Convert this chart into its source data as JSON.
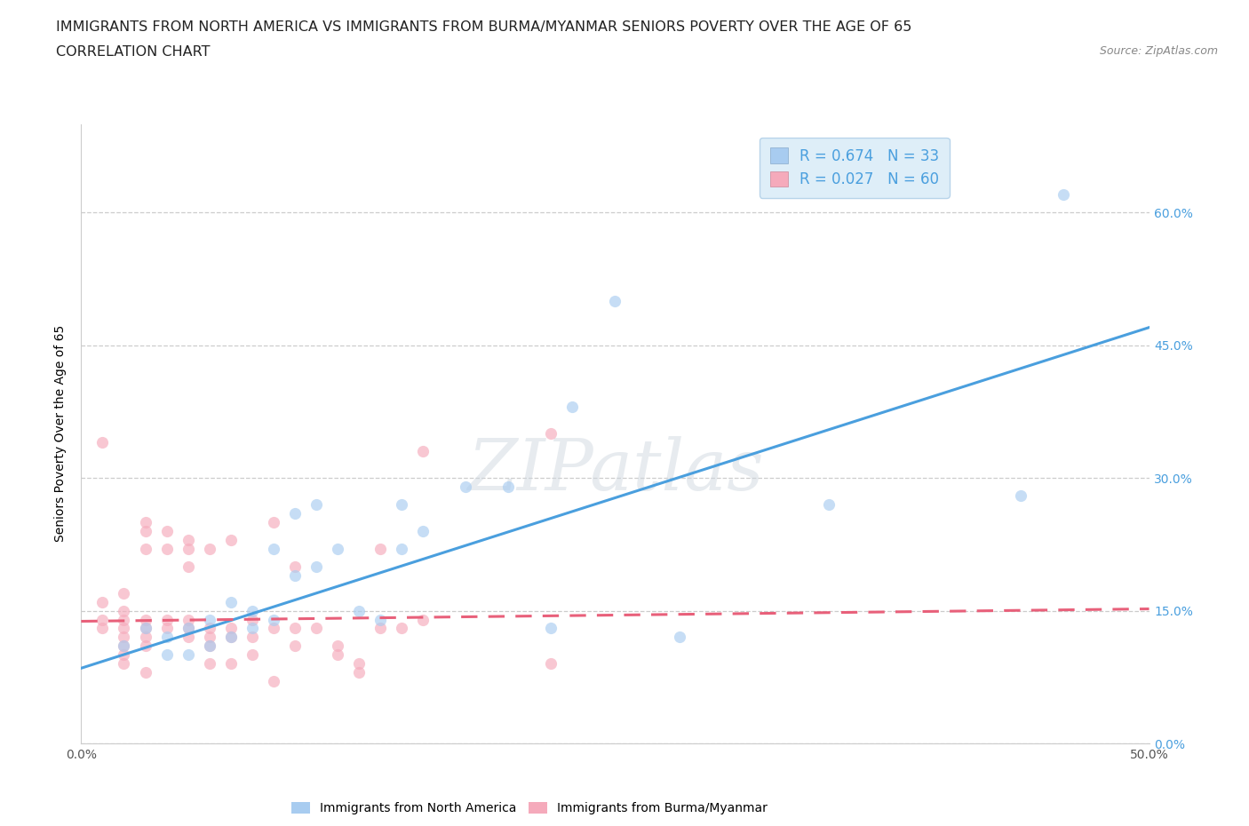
{
  "title_line1": "IMMIGRANTS FROM NORTH AMERICA VS IMMIGRANTS FROM BURMA/MYANMAR SENIORS POVERTY OVER THE AGE OF 65",
  "title_line2": "CORRELATION CHART",
  "source_text": "Source: ZipAtlas.com",
  "ylabel": "Seniors Poverty Over the Age of 65",
  "xlim": [
    0.0,
    0.5
  ],
  "ylim": [
    0.0,
    0.7
  ],
  "y_ticks": [
    0.0,
    0.15,
    0.3,
    0.45,
    0.6
  ],
  "y_tick_labels_right": [
    "0.0%",
    "15.0%",
    "30.0%",
    "45.0%",
    "60.0%"
  ],
  "watermark": "ZIPatlas",
  "legend_blue_label": "R = 0.674   N = 33",
  "legend_pink_label": "R = 0.027   N = 60",
  "blue_scatter": [
    [
      0.02,
      0.11
    ],
    [
      0.03,
      0.13
    ],
    [
      0.04,
      0.12
    ],
    [
      0.04,
      0.1
    ],
    [
      0.05,
      0.13
    ],
    [
      0.05,
      0.1
    ],
    [
      0.06,
      0.11
    ],
    [
      0.06,
      0.14
    ],
    [
      0.07,
      0.12
    ],
    [
      0.07,
      0.16
    ],
    [
      0.08,
      0.15
    ],
    [
      0.08,
      0.13
    ],
    [
      0.09,
      0.22
    ],
    [
      0.09,
      0.14
    ],
    [
      0.1,
      0.26
    ],
    [
      0.1,
      0.19
    ],
    [
      0.11,
      0.27
    ],
    [
      0.11,
      0.2
    ],
    [
      0.12,
      0.22
    ],
    [
      0.13,
      0.15
    ],
    [
      0.14,
      0.14
    ],
    [
      0.15,
      0.27
    ],
    [
      0.15,
      0.22
    ],
    [
      0.16,
      0.24
    ],
    [
      0.18,
      0.29
    ],
    [
      0.2,
      0.29
    ],
    [
      0.22,
      0.13
    ],
    [
      0.23,
      0.38
    ],
    [
      0.25,
      0.5
    ],
    [
      0.28,
      0.12
    ],
    [
      0.35,
      0.27
    ],
    [
      0.44,
      0.28
    ],
    [
      0.46,
      0.62
    ]
  ],
  "pink_scatter": [
    [
      0.01,
      0.14
    ],
    [
      0.01,
      0.13
    ],
    [
      0.01,
      0.16
    ],
    [
      0.02,
      0.14
    ],
    [
      0.02,
      0.13
    ],
    [
      0.02,
      0.12
    ],
    [
      0.02,
      0.15
    ],
    [
      0.02,
      0.11
    ],
    [
      0.02,
      0.1
    ],
    [
      0.02,
      0.17
    ],
    [
      0.03,
      0.14
    ],
    [
      0.03,
      0.12
    ],
    [
      0.03,
      0.13
    ],
    [
      0.03,
      0.11
    ],
    [
      0.03,
      0.22
    ],
    [
      0.03,
      0.24
    ],
    [
      0.03,
      0.25
    ],
    [
      0.04,
      0.14
    ],
    [
      0.04,
      0.13
    ],
    [
      0.04,
      0.22
    ],
    [
      0.04,
      0.24
    ],
    [
      0.05,
      0.13
    ],
    [
      0.05,
      0.12
    ],
    [
      0.05,
      0.14
    ],
    [
      0.05,
      0.23
    ],
    [
      0.05,
      0.22
    ],
    [
      0.05,
      0.2
    ],
    [
      0.06,
      0.13
    ],
    [
      0.06,
      0.22
    ],
    [
      0.06,
      0.12
    ],
    [
      0.06,
      0.11
    ],
    [
      0.07,
      0.13
    ],
    [
      0.07,
      0.23
    ],
    [
      0.07,
      0.12
    ],
    [
      0.08,
      0.14
    ],
    [
      0.08,
      0.12
    ],
    [
      0.09,
      0.13
    ],
    [
      0.09,
      0.25
    ],
    [
      0.09,
      0.07
    ],
    [
      0.1,
      0.13
    ],
    [
      0.1,
      0.11
    ],
    [
      0.1,
      0.2
    ],
    [
      0.11,
      0.13
    ],
    [
      0.12,
      0.11
    ],
    [
      0.12,
      0.1
    ],
    [
      0.13,
      0.09
    ],
    [
      0.13,
      0.08
    ],
    [
      0.14,
      0.22
    ],
    [
      0.14,
      0.13
    ],
    [
      0.15,
      0.13
    ],
    [
      0.16,
      0.14
    ],
    [
      0.16,
      0.33
    ],
    [
      0.01,
      0.34
    ],
    [
      0.02,
      0.09
    ],
    [
      0.03,
      0.08
    ],
    [
      0.06,
      0.09
    ],
    [
      0.07,
      0.09
    ],
    [
      0.08,
      0.1
    ],
    [
      0.22,
      0.09
    ],
    [
      0.22,
      0.35
    ]
  ],
  "blue_line_x": [
    0.0,
    0.5
  ],
  "blue_line_y": [
    0.085,
    0.47
  ],
  "pink_line_x": [
    0.0,
    0.5
  ],
  "pink_line_y": [
    0.138,
    0.152
  ],
  "blue_line_color": "#4a9fde",
  "pink_line_color": "#e8607a",
  "blue_scatter_color": "#a8ccf0",
  "pink_scatter_color": "#f5aabb",
  "right_tick_color": "#4a9fde",
  "grid_color": "#cccccc",
  "background_color": "#ffffff",
  "title_fontsize": 11.5,
  "ylabel_fontsize": 10,
  "scatter_size": 90,
  "scatter_alpha": 0.65,
  "line_width": 2.2,
  "legend_facecolor": "#deeef8",
  "legend_edgecolor": "#b8d4ea"
}
